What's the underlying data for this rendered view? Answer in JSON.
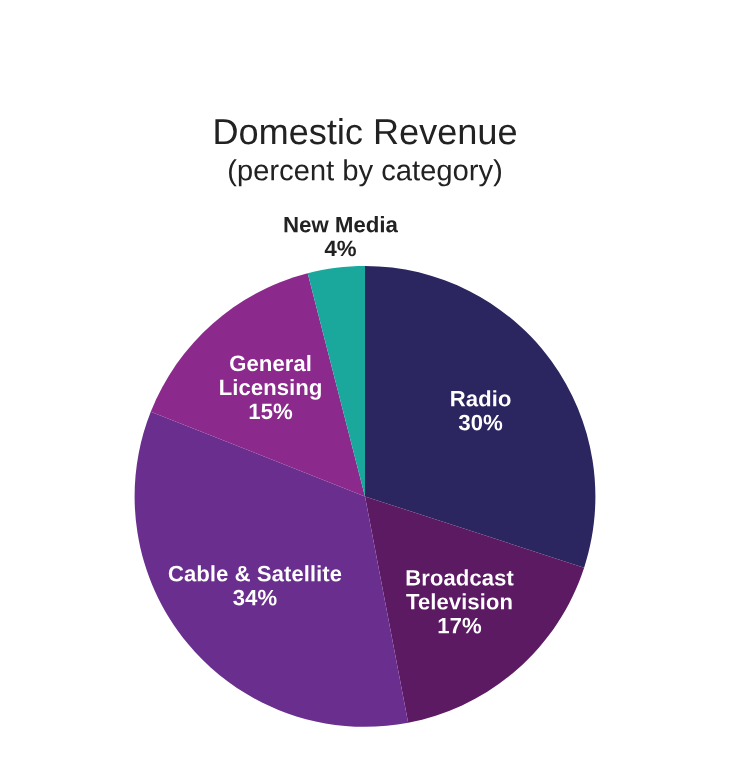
{
  "chart_data": {
    "type": "pie",
    "title": "Domestic Revenue",
    "subtitle": "(percent by category)",
    "categories": [
      "Radio",
      "Broadcast\nTelevision",
      "Cable & Satellite",
      "General\nLicensing",
      "New Media"
    ],
    "values": [
      30,
      17,
      34,
      15,
      4
    ],
    "value_labels": [
      "30%",
      "17%",
      "34%",
      "15%",
      "4%"
    ],
    "colors": [
      "#2b2660",
      "#5c1a63",
      "#6a2f8e",
      "#8b2a8c",
      "#1aa89c"
    ]
  }
}
